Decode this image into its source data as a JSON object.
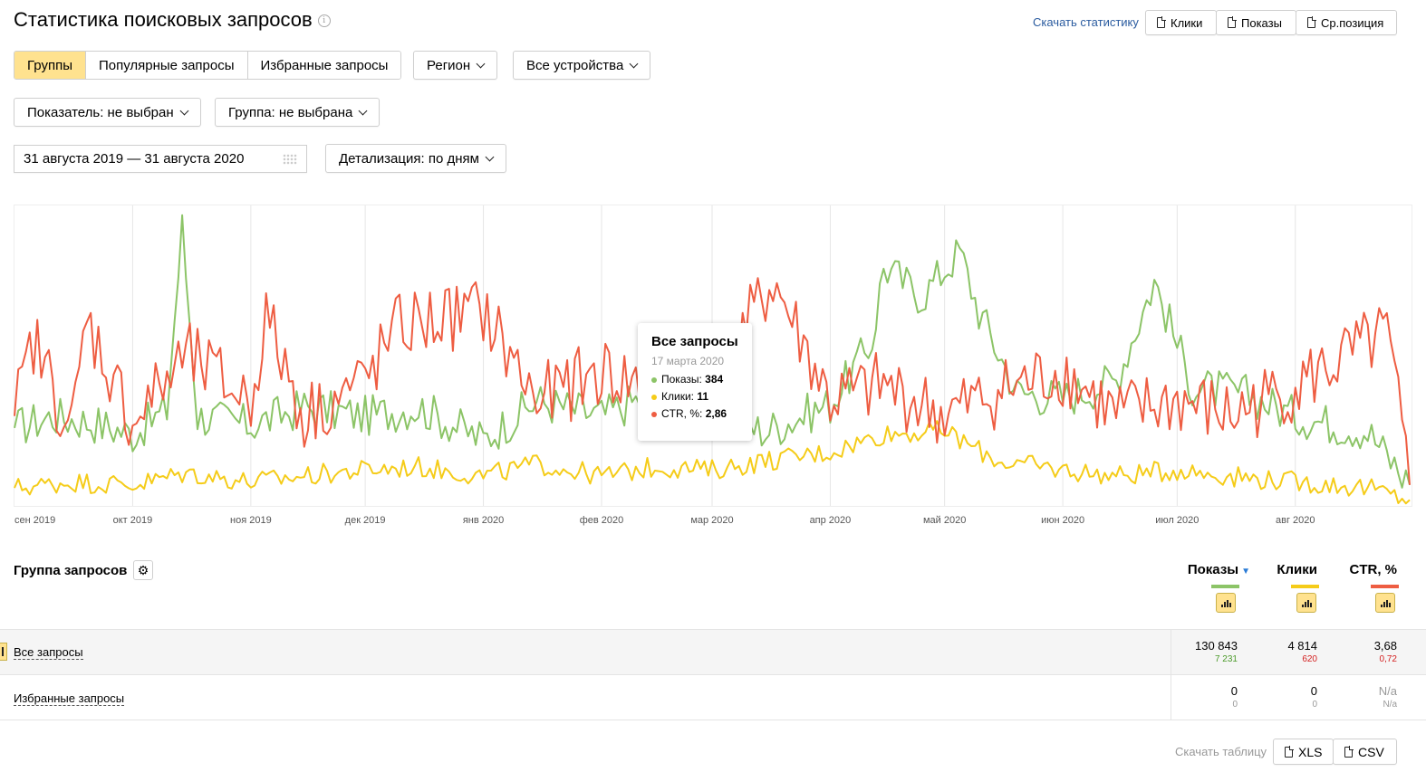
{
  "header": {
    "title": "Статистика поисковых запросов",
    "info_icon": "i",
    "download_stats": "Скачать статистику",
    "export_buttons": [
      "Клики",
      "Показы",
      "Ср.позиция"
    ]
  },
  "filters": {
    "tabs": [
      {
        "label": "Группы",
        "active": true
      },
      {
        "label": "Популярные запросы",
        "active": false
      },
      {
        "label": "Избранные запросы",
        "active": false
      }
    ],
    "region": "Регион",
    "devices": "Все устройства",
    "metric": "Показатель: не выбран",
    "group": "Группа: не выбрана",
    "date_range": "31 августа 2019 — 31 августа 2020",
    "detail": "Детализация: по дням"
  },
  "colors": {
    "accent": "#ffe28f",
    "shows": "#8cc467",
    "clicks": "#f5cc19",
    "ctr": "#ee5d42",
    "link": "#2a5b9f"
  },
  "chart_data": {
    "type": "line",
    "x_ticks": [
      "сен 2019",
      "окт 2019",
      "ноя 2019",
      "дек 2019",
      "янв 2020",
      "фев 2020",
      "мар 2020",
      "апр 2020",
      "май 2020",
      "июн 2020",
      "июл 2020",
      "авг 2020"
    ],
    "x_range": [
      "2019-08-31",
      "2020-08-31"
    ],
    "series": [
      {
        "name": "Показы",
        "color": "#8cc467",
        "points": [
          [
            "2019-08-31",
            0.26
          ],
          [
            "2019-09-10",
            0.3
          ],
          [
            "2019-09-20",
            0.28
          ],
          [
            "2019-10-01",
            0.24
          ],
          [
            "2019-10-10",
            0.32
          ],
          [
            "2019-10-14",
            0.93
          ],
          [
            "2019-10-18",
            0.3
          ],
          [
            "2019-11-01",
            0.27
          ],
          [
            "2019-11-15",
            0.33
          ],
          [
            "2019-12-01",
            0.3
          ],
          [
            "2019-12-15",
            0.33
          ],
          [
            "2020-01-01",
            0.22
          ],
          [
            "2020-01-15",
            0.35
          ],
          [
            "2020-02-01",
            0.3
          ],
          [
            "2020-02-15",
            0.38
          ],
          [
            "2020-03-01",
            0.3
          ],
          [
            "2020-03-15",
            0.25
          ],
          [
            "2020-04-01",
            0.34
          ],
          [
            "2020-04-12",
            0.55
          ],
          [
            "2020-04-15",
            0.8
          ],
          [
            "2020-04-25",
            0.7
          ],
          [
            "2020-05-05",
            0.85
          ],
          [
            "2020-05-10",
            0.65
          ],
          [
            "2020-05-20",
            0.38
          ],
          [
            "2020-06-01",
            0.36
          ],
          [
            "2020-06-15",
            0.42
          ],
          [
            "2020-06-25",
            0.75
          ],
          [
            "2020-07-05",
            0.4
          ],
          [
            "2020-07-20",
            0.37
          ],
          [
            "2020-08-01",
            0.3
          ],
          [
            "2020-08-20",
            0.25
          ],
          [
            "2020-08-31",
            0.07
          ]
        ]
      },
      {
        "name": "Клики",
        "color": "#f5cc19",
        "points": [
          [
            "2019-08-31",
            0.06
          ],
          [
            "2019-09-15",
            0.08
          ],
          [
            "2019-10-01",
            0.07
          ],
          [
            "2019-10-15",
            0.11
          ],
          [
            "2019-11-01",
            0.08
          ],
          [
            "2019-11-15",
            0.1
          ],
          [
            "2019-12-01",
            0.12
          ],
          [
            "2019-12-15",
            0.13
          ],
          [
            "2020-01-01",
            0.1
          ],
          [
            "2020-01-15",
            0.14
          ],
          [
            "2020-02-01",
            0.1
          ],
          [
            "2020-02-15",
            0.13
          ],
          [
            "2020-03-01",
            0.12
          ],
          [
            "2020-03-15",
            0.15
          ],
          [
            "2020-04-01",
            0.18
          ],
          [
            "2020-04-15",
            0.24
          ],
          [
            "2020-05-01",
            0.25
          ],
          [
            "2020-05-15",
            0.15
          ],
          [
            "2020-06-01",
            0.12
          ],
          [
            "2020-06-15",
            0.1
          ],
          [
            "2020-07-01",
            0.12
          ],
          [
            "2020-07-15",
            0.1
          ],
          [
            "2020-08-01",
            0.08
          ],
          [
            "2020-08-20",
            0.06
          ],
          [
            "2020-08-31",
            0.02
          ]
        ]
      },
      {
        "name": "CTR, %",
        "color": "#ee5d42",
        "points": [
          [
            "2019-08-31",
            0.3
          ],
          [
            "2019-09-05",
            0.55
          ],
          [
            "2019-09-15",
            0.25
          ],
          [
            "2019-09-19",
            0.62
          ],
          [
            "2019-10-01",
            0.28
          ],
          [
            "2019-10-15",
            0.5
          ],
          [
            "2019-11-01",
            0.35
          ],
          [
            "2019-11-05",
            0.63
          ],
          [
            "2019-11-15",
            0.3
          ],
          [
            "2019-12-01",
            0.42
          ],
          [
            "2019-12-10",
            0.6
          ],
          [
            "2020-01-01",
            0.65
          ],
          [
            "2020-01-15",
            0.35
          ],
          [
            "2020-02-01",
            0.45
          ],
          [
            "2020-02-15",
            0.38
          ],
          [
            "2020-03-01",
            0.4
          ],
          [
            "2020-03-17",
            0.75
          ],
          [
            "2020-04-01",
            0.35
          ],
          [
            "2020-04-15",
            0.4
          ],
          [
            "2020-05-01",
            0.3
          ],
          [
            "2020-05-15",
            0.38
          ],
          [
            "2020-06-01",
            0.45
          ],
          [
            "2020-06-15",
            0.3
          ],
          [
            "2020-07-01",
            0.35
          ],
          [
            "2020-07-15",
            0.3
          ],
          [
            "2020-08-01",
            0.4
          ],
          [
            "2020-08-25",
            0.57
          ],
          [
            "2020-08-31",
            0.07
          ]
        ]
      }
    ],
    "tooltip": {
      "title": "Все запросы",
      "date": "17 марта 2020",
      "rows": [
        {
          "label": "Показы:",
          "value": "384",
          "color": "#8cc467"
        },
        {
          "label": "Клики:",
          "value": "11",
          "color": "#f5cc19"
        },
        {
          "label": "CTR, %:",
          "value": "2,86",
          "color": "#ee5d42"
        }
      ]
    }
  },
  "table": {
    "group_header": "Группа запросов",
    "columns": [
      {
        "label": "Показы",
        "color": "#8cc467",
        "sorted": true
      },
      {
        "label": "Клики",
        "color": "#f5cc19",
        "sorted": false
      },
      {
        "label": "CTR, %",
        "color": "#ee5d42",
        "sorted": false
      }
    ],
    "rows": [
      {
        "label": "Все запросы",
        "values": [
          "130 843",
          "4 814",
          "3,68"
        ],
        "subs": [
          "7 231",
          "620",
          "0,72"
        ]
      },
      {
        "label": "Избранные запросы",
        "values": [
          "0",
          "0",
          "N/a"
        ],
        "subs": [
          "0",
          "0",
          "N/a"
        ]
      }
    ],
    "download_table": "Скачать таблицу",
    "download_formats": [
      "XLS",
      "CSV"
    ]
  }
}
